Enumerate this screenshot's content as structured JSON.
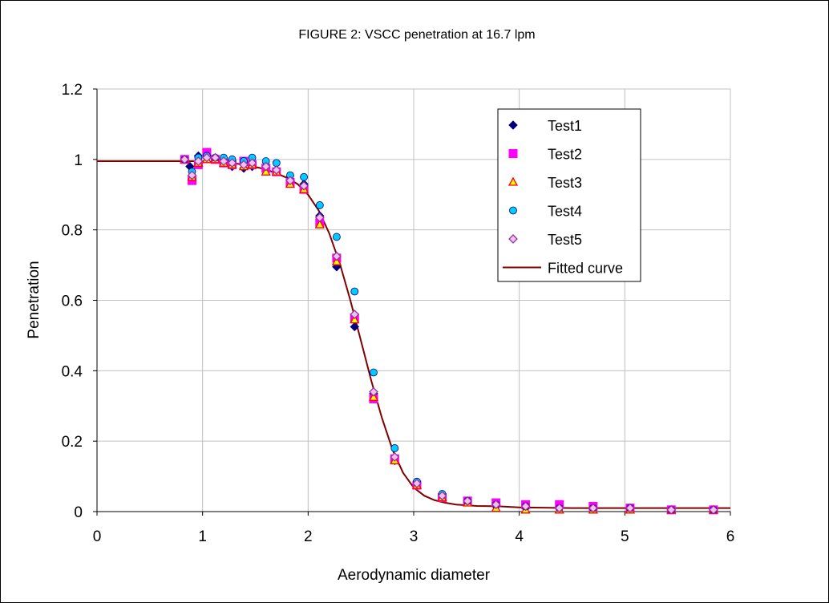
{
  "chart_data": {
    "type": "scatter",
    "title": "FIGURE 2: VSCC penetration at 16.7 lpm",
    "xlabel": "Aerodynamic diameter",
    "ylabel": "Penetration",
    "xlim": [
      0,
      6
    ],
    "ylim": [
      0,
      1.2
    ],
    "x_ticks": [
      "0",
      "1",
      "2",
      "3",
      "4",
      "5",
      "6"
    ],
    "y_ticks": [
      "0",
      "0.2",
      "0.4",
      "0.6",
      "0.8",
      "1",
      "1.2"
    ],
    "grid": true,
    "legend_position": "top-right",
    "series": [
      {
        "name": "Test1",
        "marker": "diamond",
        "color": "#00007f",
        "points": [
          [
            0.83,
            1.0
          ],
          [
            0.88,
            0.98
          ],
          [
            0.9,
            0.95
          ],
          [
            0.96,
            1.01
          ],
          [
            1.04,
            1.01
          ],
          [
            1.12,
            1.0
          ],
          [
            1.2,
            0.99
          ],
          [
            1.28,
            0.98
          ],
          [
            1.39,
            0.975
          ],
          [
            1.47,
            0.98
          ],
          [
            1.6,
            0.975
          ],
          [
            1.7,
            0.97
          ],
          [
            1.83,
            0.935
          ],
          [
            1.96,
            0.93
          ],
          [
            2.11,
            0.84
          ],
          [
            2.27,
            0.695
          ],
          [
            2.44,
            0.525
          ],
          [
            2.62,
            0.335
          ],
          [
            2.82,
            0.145
          ],
          [
            3.03,
            0.08
          ],
          [
            3.27,
            0.045
          ],
          [
            3.51,
            0.03
          ],
          [
            3.78,
            0.015
          ],
          [
            4.06,
            0.01
          ],
          [
            4.38,
            0.01
          ],
          [
            4.7,
            0.01
          ],
          [
            5.05,
            0.01
          ],
          [
            5.44,
            0.005
          ],
          [
            5.84,
            0.005
          ]
        ]
      },
      {
        "name": "Test2",
        "marker": "square",
        "color": "#ff00ff",
        "points": [
          [
            0.83,
            1.0
          ],
          [
            0.9,
            0.94
          ],
          [
            0.96,
            0.985
          ],
          [
            1.04,
            1.02
          ],
          [
            1.12,
            1.0
          ],
          [
            1.2,
            0.99
          ],
          [
            1.28,
            0.985
          ],
          [
            1.39,
            0.995
          ],
          [
            1.47,
            0.985
          ],
          [
            1.6,
            0.975
          ],
          [
            1.7,
            0.965
          ],
          [
            1.83,
            0.935
          ],
          [
            1.96,
            0.915
          ],
          [
            2.11,
            0.82
          ],
          [
            2.27,
            0.72
          ],
          [
            2.44,
            0.55
          ],
          [
            2.62,
            0.32
          ],
          [
            2.82,
            0.15
          ],
          [
            3.03,
            0.075
          ],
          [
            3.27,
            0.04
          ],
          [
            3.51,
            0.03
          ],
          [
            3.78,
            0.025
          ],
          [
            4.06,
            0.02
          ],
          [
            4.38,
            0.02
          ],
          [
            4.7,
            0.015
          ],
          [
            5.05,
            0.01
          ],
          [
            5.44,
            0.005
          ],
          [
            5.84,
            0.005
          ]
        ]
      },
      {
        "name": "Test3",
        "marker": "triangle",
        "color": "#ff0000",
        "points": [
          [
            0.83,
            1.0
          ],
          [
            0.9,
            0.95
          ],
          [
            0.96,
            0.99
          ],
          [
            1.04,
            1.0
          ],
          [
            1.12,
            1.0
          ],
          [
            1.2,
            0.99
          ],
          [
            1.28,
            0.985
          ],
          [
            1.39,
            0.98
          ],
          [
            1.47,
            0.985
          ],
          [
            1.6,
            0.965
          ],
          [
            1.7,
            0.965
          ],
          [
            1.83,
            0.93
          ],
          [
            1.96,
            0.915
          ],
          [
            2.11,
            0.815
          ],
          [
            2.27,
            0.71
          ],
          [
            2.44,
            0.545
          ],
          [
            2.62,
            0.325
          ],
          [
            2.82,
            0.145
          ],
          [
            3.03,
            0.075
          ],
          [
            3.27,
            0.04
          ],
          [
            3.51,
            0.025
          ],
          [
            3.78,
            0.01
          ],
          [
            4.06,
            0.005
          ],
          [
            4.38,
            0.005
          ],
          [
            4.7,
            0.005
          ],
          [
            5.05,
            0.005
          ],
          [
            5.44,
            0.005
          ],
          [
            5.84,
            0.005
          ]
        ]
      },
      {
        "name": "Test4",
        "marker": "circle",
        "color": "#00ccff",
        "points": [
          [
            0.83,
            1.0
          ],
          [
            0.9,
            0.965
          ],
          [
            0.96,
            1.005
          ],
          [
            1.04,
            1.01
          ],
          [
            1.12,
            1.005
          ],
          [
            1.2,
            1.005
          ],
          [
            1.28,
            1.0
          ],
          [
            1.39,
            0.995
          ],
          [
            1.47,
            1.005
          ],
          [
            1.6,
            0.995
          ],
          [
            1.7,
            0.99
          ],
          [
            1.83,
            0.955
          ],
          [
            1.96,
            0.95
          ],
          [
            2.11,
            0.87
          ],
          [
            2.27,
            0.78
          ],
          [
            2.44,
            0.625
          ],
          [
            2.62,
            0.395
          ],
          [
            2.82,
            0.18
          ],
          [
            3.03,
            0.085
          ],
          [
            3.27,
            0.05
          ],
          [
            3.51,
            0.03
          ],
          [
            3.78,
            0.02
          ],
          [
            4.06,
            0.015
          ],
          [
            4.38,
            0.01
          ],
          [
            4.7,
            0.01
          ],
          [
            5.05,
            0.01
          ],
          [
            5.44,
            0.005
          ],
          [
            5.84,
            0.005
          ]
        ]
      },
      {
        "name": "Test5",
        "marker": "diamond-open",
        "color": "#cc66cc",
        "points": [
          [
            0.83,
            1.0
          ],
          [
            0.9,
            0.955
          ],
          [
            0.96,
            0.995
          ],
          [
            1.04,
            1.005
          ],
          [
            1.12,
            1.005
          ],
          [
            1.2,
            0.995
          ],
          [
            1.28,
            0.99
          ],
          [
            1.39,
            0.985
          ],
          [
            1.47,
            0.99
          ],
          [
            1.6,
            0.98
          ],
          [
            1.7,
            0.97
          ],
          [
            1.83,
            0.94
          ],
          [
            1.96,
            0.925
          ],
          [
            2.11,
            0.835
          ],
          [
            2.27,
            0.725
          ],
          [
            2.44,
            0.56
          ],
          [
            2.62,
            0.34
          ],
          [
            2.82,
            0.155
          ],
          [
            3.03,
            0.08
          ],
          [
            3.27,
            0.045
          ],
          [
            3.51,
            0.03
          ],
          [
            3.78,
            0.02
          ],
          [
            4.06,
            0.015
          ],
          [
            4.38,
            0.01
          ],
          [
            4.7,
            0.01
          ],
          [
            5.05,
            0.01
          ],
          [
            5.44,
            0.005
          ],
          [
            5.84,
            0.005
          ]
        ]
      }
    ],
    "fitted_curve": {
      "name": "Fitted curve",
      "color": "#800000",
      "points": [
        [
          0,
          0.995
        ],
        [
          0.8,
          0.995
        ],
        [
          1.0,
          0.995
        ],
        [
          1.2,
          0.992
        ],
        [
          1.4,
          0.985
        ],
        [
          1.6,
          0.972
        ],
        [
          1.8,
          0.948
        ],
        [
          1.9,
          0.93
        ],
        [
          2.0,
          0.9
        ],
        [
          2.1,
          0.855
        ],
        [
          2.2,
          0.79
        ],
        [
          2.3,
          0.705
        ],
        [
          2.4,
          0.6
        ],
        [
          2.5,
          0.485
        ],
        [
          2.6,
          0.37
        ],
        [
          2.7,
          0.265
        ],
        [
          2.8,
          0.175
        ],
        [
          2.9,
          0.11
        ],
        [
          3.0,
          0.068
        ],
        [
          3.1,
          0.045
        ],
        [
          3.2,
          0.032
        ],
        [
          3.3,
          0.025
        ],
        [
          3.4,
          0.02
        ],
        [
          3.6,
          0.016
        ],
        [
          3.8,
          0.015
        ],
        [
          4.0,
          0.012
        ],
        [
          4.5,
          0.01
        ],
        [
          5.0,
          0.01
        ],
        [
          5.5,
          0.01
        ],
        [
          6.0,
          0.01
        ]
      ]
    }
  }
}
